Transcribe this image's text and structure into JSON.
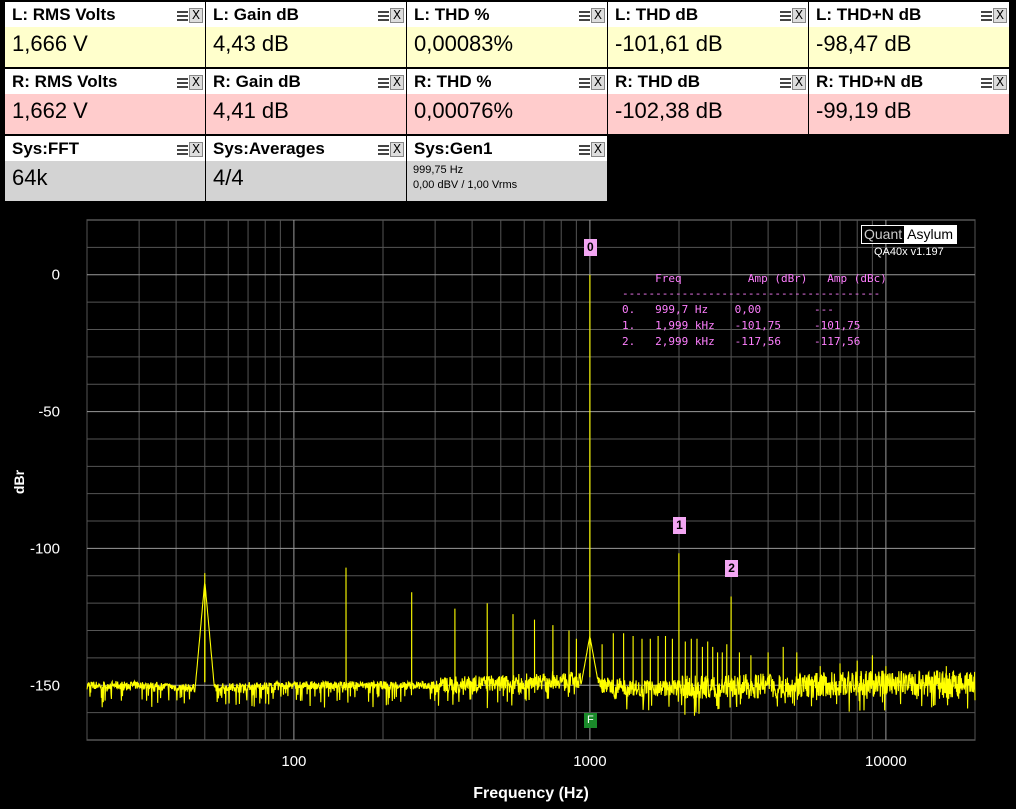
{
  "tiles": [
    {
      "title": "L: RMS Volts",
      "value": "1,666 V",
      "bg": "#ffffcc"
    },
    {
      "title": "L: Gain dB",
      "value": "4,43 dB",
      "bg": "#ffffcc"
    },
    {
      "title": "L: THD %",
      "value": "0,00083%",
      "bg": "#ffffcc"
    },
    {
      "title": "L: THD dB",
      "value": "-101,61 dB",
      "bg": "#ffffcc"
    },
    {
      "title": "L: THD+N dB",
      "value": "-98,47 dB",
      "bg": "#ffffcc"
    },
    {
      "title": "R: RMS Volts",
      "value": "1,662 V",
      "bg": "#ffcccc"
    },
    {
      "title": "R: Gain dB",
      "value": "4,41 dB",
      "bg": "#ffcccc"
    },
    {
      "title": "R: THD %",
      "value": "0,00076%",
      "bg": "#ffcccc"
    },
    {
      "title": "R: THD dB",
      "value": "-102,38 dB",
      "bg": "#ffcccc"
    },
    {
      "title": "R: THD+N dB",
      "value": "-99,19 dB",
      "bg": "#ffcccc"
    },
    {
      "title": "Sys:FFT",
      "value": "64k",
      "bg": "#d3d3d3"
    },
    {
      "title": "Sys:Averages",
      "value": "4/4",
      "bg": "#d3d3d3"
    },
    {
      "title": "Sys:Gen1",
      "lines": [
        "999,75 Hz",
        "0,00 dBV  / 1,00 Vrms"
      ],
      "bg": "#d3d3d3"
    }
  ],
  "tile_icons": {
    "menu": "menu-icon",
    "close": "close-icon",
    "close_glyph": "X"
  },
  "brand": {
    "left": "Quant",
    "right": "Asylum",
    "version": "QA40x v1.197"
  },
  "marker_table": {
    "header": "     Freq          Amp (dBr)   Amp (dBc)",
    "separator": "---------------------------------------",
    "rows": [
      "0.   999,7 Hz    0,00        ---",
      "1.   1,999 kHz   -101,75     -101,75",
      "2.   2,999 kHz   -117,56     -117,56"
    ]
  },
  "chart_data": {
    "type": "line",
    "xlabel": "Frequency (Hz)",
    "ylabel": "dBr",
    "xscale": "log",
    "xlim": [
      20,
      20000
    ],
    "ylim": [
      -170,
      20
    ],
    "xticks": [
      100,
      1000,
      10000
    ],
    "yticks": [
      0,
      -50,
      -100,
      -150
    ],
    "grid": true,
    "series": [
      {
        "color": "#ffff00",
        "noise_floor": [
          [
            20,
            -150
          ],
          [
            30,
            -150
          ],
          [
            45,
            -151
          ],
          [
            100,
            -150
          ],
          [
            300,
            -150
          ],
          [
            900,
            -148
          ],
          [
            1100,
            -150
          ],
          [
            1500,
            -151
          ],
          [
            2000,
            -151
          ],
          [
            3000,
            -150.5
          ],
          [
            5000,
            -150
          ],
          [
            10000,
            -149
          ],
          [
            20000,
            -149
          ]
        ],
        "peaks": [
          [
            50,
            -109
          ],
          [
            150,
            -107
          ],
          [
            250,
            -116
          ],
          [
            350,
            -122
          ],
          [
            450,
            -120
          ],
          [
            550,
            -124
          ],
          [
            650,
            -126
          ],
          [
            750,
            -128
          ],
          [
            850,
            -130
          ],
          [
            900,
            -133
          ],
          [
            999.7,
            0
          ],
          [
            1100,
            -135
          ],
          [
            1200,
            -131
          ],
          [
            1300,
            -131
          ],
          [
            1400,
            -132
          ],
          [
            1500,
            -133
          ],
          [
            1600,
            -133
          ],
          [
            1700,
            -132
          ],
          [
            1800,
            -132
          ],
          [
            1900,
            -133
          ],
          [
            1999,
            -101.75
          ],
          [
            2100,
            -134
          ],
          [
            2200,
            -133
          ],
          [
            2300,
            -133
          ],
          [
            2400,
            -136
          ],
          [
            2500,
            -134
          ],
          [
            2600,
            -136
          ],
          [
            2700,
            -138
          ],
          [
            2800,
            -138
          ],
          [
            2900,
            -135
          ],
          [
            2999,
            -117.56
          ],
          [
            3200,
            -138
          ],
          [
            3500,
            -139
          ],
          [
            4000,
            -138
          ],
          [
            4500,
            -136
          ],
          [
            5000,
            -138
          ],
          [
            6000,
            -143
          ],
          [
            7000,
            -142
          ],
          [
            8000,
            -141
          ],
          [
            9000,
            -139
          ],
          [
            10000,
            -143
          ],
          [
            13000,
            -145
          ],
          [
            16000,
            -143
          ]
        ]
      }
    ],
    "markers": [
      {
        "label": "0",
        "freq": 999.7,
        "amp": 0
      },
      {
        "label": "1",
        "freq": 1999,
        "amp": -101.75
      },
      {
        "label": "2",
        "freq": 2999,
        "amp": -117.56
      }
    ],
    "fundamental_marker": {
      "label": "F",
      "freq": 999.7
    }
  }
}
